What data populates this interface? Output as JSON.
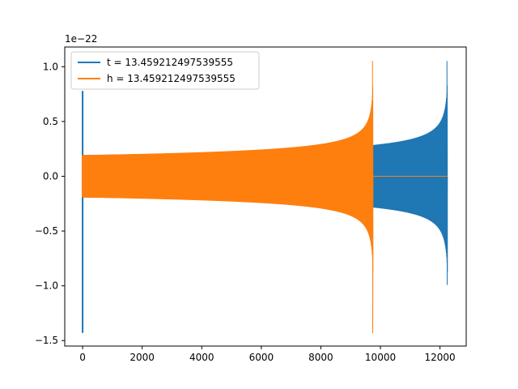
{
  "chart_data": {
    "type": "line",
    "title": "",
    "xlabel": "",
    "ylabel": "",
    "y_offset_label": "1e−22",
    "xlim": [
      -600,
      12880
    ],
    "ylim": [
      -1.55,
      1.18
    ],
    "x_ticks": [
      0,
      2000,
      4000,
      6000,
      8000,
      10000,
      12000
    ],
    "x_tick_labels": [
      "0",
      "2000",
      "4000",
      "6000",
      "8000",
      "10000",
      "12000"
    ],
    "y_ticks": [
      -1.5,
      -1.0,
      -0.5,
      0.0,
      0.5,
      1.0
    ],
    "y_tick_labels": [
      "−1.5",
      "−1.0",
      "−0.5",
      "0.0",
      "0.5",
      "1.0"
    ],
    "grid": false,
    "legend_position": "top-left",
    "series": [
      {
        "name": "t = 13.459212497539555",
        "color": "#1f77b4",
        "waveform": "inspiral chirp",
        "x_start": 0,
        "x_end": 12250,
        "envelope_start": 0.19,
        "envelope_near_merger": 0.87,
        "peak_max": 1.05,
        "peak_min": -0.99,
        "initial_transient_max": 0.78,
        "initial_transient_min": -1.43,
        "initial_transient_x": 0,
        "merger_x": 12250,
        "flat_after_merger": false
      },
      {
        "name": "h = 13.459212497539555",
        "color": "#ff7f0e",
        "waveform": "inspiral chirp",
        "x_start": 0,
        "x_end": 9750,
        "envelope_start": 0.19,
        "envelope_near_merger": 0.87,
        "peak_max": 1.05,
        "peak_min": -1.43,
        "initial_transient_max": 0.19,
        "initial_transient_min": -0.19,
        "initial_transient_x": 0,
        "merger_x": 9750,
        "flat_after_merger": true,
        "flat_value": 0.0,
        "flat_until_x": 12250
      }
    ]
  }
}
